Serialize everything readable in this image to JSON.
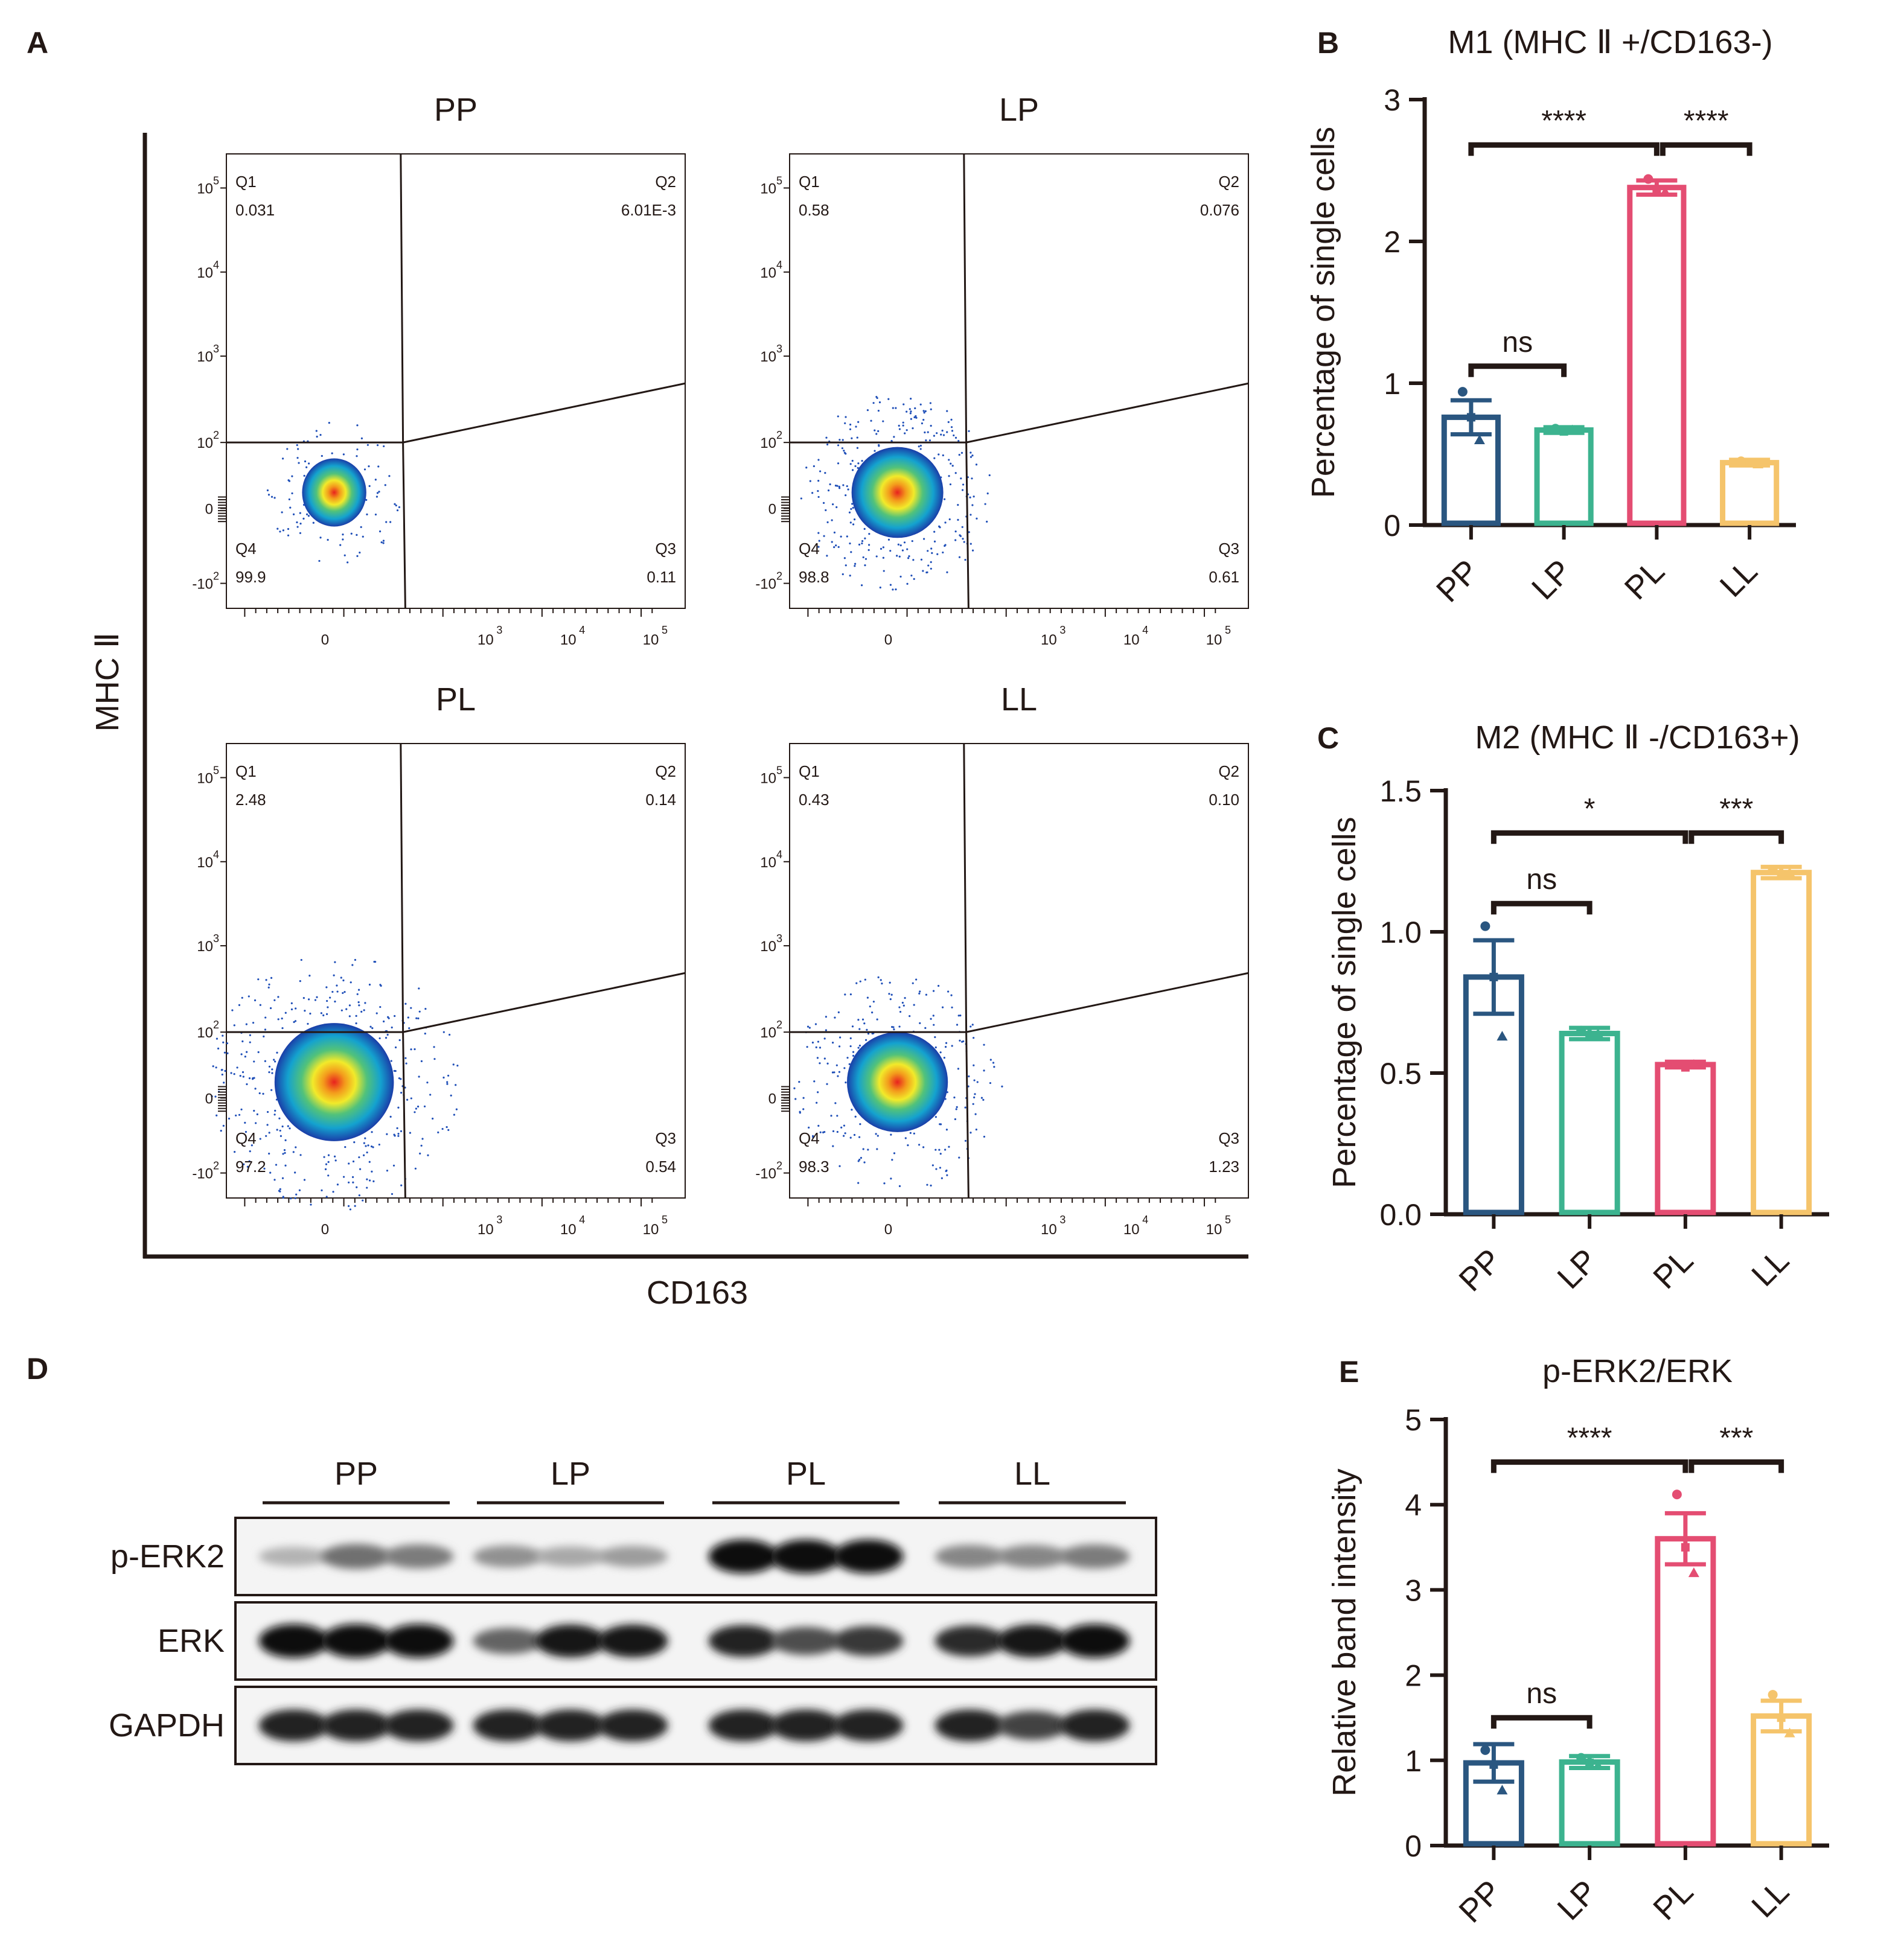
{
  "panels": {
    "A": "A",
    "B": "B",
    "C": "C",
    "D": "D",
    "E": "E"
  },
  "flow": {
    "ylabel": "MHC Ⅱ",
    "xlabel": "CD163",
    "plots": [
      {
        "title": "PP",
        "q1": "Q1",
        "q1v": "0.031",
        "q2": "Q2",
        "q2v": "6.01E-3",
        "q3": "Q3",
        "q3v": "0.11",
        "q4": "Q4",
        "q4v": "99.9"
      },
      {
        "title": "LP",
        "q1": "Q1",
        "q1v": "0.58",
        "q2": "Q2",
        "q2v": "0.076",
        "q3": "Q3",
        "q3v": "0.61",
        "q4": "Q4",
        "q4v": "98.8"
      },
      {
        "title": "PL",
        "q1": "Q1",
        "q1v": "2.48",
        "q2": "Q2",
        "q2v": "0.14",
        "q3": "Q3",
        "q3v": "0.54",
        "q4": "Q4",
        "q4v": "97.2"
      },
      {
        "title": "LL",
        "q1": "Q1",
        "q1v": "0.43",
        "q2": "Q2",
        "q2v": "0.10",
        "q3": "Q3",
        "q3v": "1.23",
        "q4": "Q4",
        "q4v": "98.3"
      }
    ],
    "yticks": [
      {
        "base": "10",
        "exp": "5"
      },
      {
        "base": "10",
        "exp": "4"
      },
      {
        "base": "10",
        "exp": "3"
      },
      {
        "base": "10",
        "exp": "2"
      },
      {
        "base": "0",
        "exp": ""
      },
      {
        "base": "-10",
        "exp": "2"
      }
    ],
    "xticks": [
      {
        "base": "0",
        "exp": ""
      },
      {
        "base": "10",
        "exp": "3"
      },
      {
        "base": "10",
        "exp": "4"
      },
      {
        "base": "10",
        "exp": "5"
      }
    ]
  },
  "western": {
    "groups": [
      "PP",
      "LP",
      "PL",
      "LL"
    ],
    "rows": [
      {
        "label": "p-ERK2",
        "intensity": [
          0.25,
          0.55,
          0.5,
          0.4,
          0.3,
          0.35,
          1.0,
          1.0,
          1.0,
          0.45,
          0.45,
          0.5
        ]
      },
      {
        "label": "ERK",
        "intensity": [
          1.0,
          1.0,
          1.0,
          0.6,
          0.95,
          0.95,
          0.9,
          0.7,
          0.8,
          0.85,
          0.95,
          1.0
        ]
      },
      {
        "label": "GAPDH",
        "intensity": [
          0.9,
          0.9,
          0.9,
          0.9,
          0.9,
          0.9,
          0.9,
          0.9,
          0.9,
          0.9,
          0.75,
          0.9
        ]
      }
    ]
  },
  "colors": {
    "PP": "#2a5680",
    "LP": "#3cb38f",
    "PL": "#e44d72",
    "LL": "#f5c46b"
  },
  "chart_data": [
    {
      "id": "B",
      "type": "bar",
      "title": "M1 (MHC Ⅱ +/CD163-)",
      "ylabel": "Percentage of single cells",
      "categories": [
        "PP",
        "LP",
        "PL",
        "LL"
      ],
      "values": [
        0.76,
        0.67,
        2.38,
        0.44
      ],
      "errors": [
        0.12,
        0.02,
        0.05,
        0.02
      ],
      "points": [
        [
          0.94,
          0.76,
          0.6
        ],
        [
          0.68,
          0.66,
          0.67
        ],
        [
          2.44,
          2.36,
          2.35
        ],
        [
          0.45,
          0.44,
          0.43
        ]
      ],
      "ylim": [
        0,
        3
      ],
      "yticks": [
        "0",
        "1",
        "2",
        "3"
      ],
      "sig": [
        {
          "from": 0,
          "to": 1,
          "label": "ns",
          "level": 1.12
        },
        {
          "from": 0,
          "to": 2,
          "label": "****",
          "level": 2.68
        },
        {
          "from": 2,
          "to": 3,
          "label": "****",
          "level": 2.68
        }
      ]
    },
    {
      "id": "C",
      "type": "bar",
      "title": "M2 (MHC Ⅱ -/CD163+)",
      "ylabel": "Percentage of single cells",
      "categories": [
        "PP",
        "LP",
        "PL",
        "LL"
      ],
      "values": [
        0.84,
        0.64,
        0.53,
        1.21
      ],
      "errors": [
        0.13,
        0.02,
        0.01,
        0.02
      ],
      "points": [
        [
          1.02,
          0.84,
          0.63
        ],
        [
          0.65,
          0.63,
          0.64
        ],
        [
          0.53,
          0.52,
          0.53
        ],
        [
          1.22,
          1.2,
          1.21
        ]
      ],
      "ylim": [
        0,
        1.5
      ],
      "yticks": [
        "0.0",
        "0.5",
        "1.0",
        "1.5"
      ],
      "sig": [
        {
          "from": 0,
          "to": 1,
          "label": "ns",
          "level": 1.1
        },
        {
          "from": 0,
          "to": 2,
          "label": "*",
          "level": 1.35
        },
        {
          "from": 2,
          "to": 3,
          "label": "***",
          "level": 1.35
        }
      ]
    },
    {
      "id": "E",
      "type": "bar",
      "title": "p-ERK2/ERK",
      "ylabel": "Relative band intensity",
      "categories": [
        "PP",
        "LP",
        "PL",
        "LL"
      ],
      "values": [
        0.97,
        0.98,
        3.6,
        1.52
      ],
      "errors": [
        0.22,
        0.07,
        0.3,
        0.18
      ],
      "points": [
        [
          1.12,
          0.95,
          0.65
        ],
        [
          1.03,
          0.97,
          0.94
        ],
        [
          4.12,
          3.5,
          3.2
        ],
        [
          1.77,
          1.5,
          1.32
        ]
      ],
      "ylim": [
        0,
        5
      ],
      "yticks": [
        "0",
        "1",
        "2",
        "3",
        "4",
        "5"
      ],
      "sig": [
        {
          "from": 0,
          "to": 1,
          "label": "ns",
          "level": 1.5
        },
        {
          "from": 0,
          "to": 2,
          "label": "****",
          "level": 4.5
        },
        {
          "from": 2,
          "to": 3,
          "label": "***",
          "level": 4.5
        }
      ]
    }
  ]
}
